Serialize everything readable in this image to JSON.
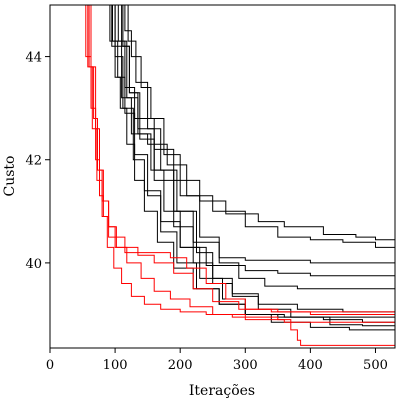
{
  "chart_data": {
    "type": "line",
    "xlabel": "Iterações",
    "ylabel": "Custo",
    "xlim": [
      0,
      530
    ],
    "ylim": [
      38.35,
      45.0
    ],
    "xticks": [
      0,
      100,
      200,
      300,
      400,
      500
    ],
    "yticks": [
      40,
      42,
      44
    ],
    "grid": false,
    "legend": "none",
    "colors": {
      "black_series": "#000000",
      "red_series": "#ff0000"
    },
    "series": [
      {
        "color": "#000000",
        "points": [
          [
            82,
            45.0
          ],
          [
            95,
            44.2
          ],
          [
            110,
            43.2
          ],
          [
            125,
            42.5
          ],
          [
            150,
            42.3
          ],
          [
            180,
            41.9
          ],
          [
            210,
            41.3
          ],
          [
            250,
            41.0
          ],
          [
            300,
            40.7
          ],
          [
            350,
            40.5
          ],
          [
            400,
            40.45
          ],
          [
            450,
            40.4
          ],
          [
            500,
            40.3
          ],
          [
            530,
            40.25
          ]
        ]
      },
      {
        "color": "#000000",
        "points": [
          [
            88,
            45.0
          ],
          [
            100,
            44.3
          ],
          [
            115,
            43.4
          ],
          [
            130,
            42.8
          ],
          [
            160,
            42.2
          ],
          [
            190,
            41.6
          ],
          [
            230,
            41.2
          ],
          [
            270,
            40.95
          ],
          [
            320,
            40.8
          ],
          [
            360,
            40.7
          ],
          [
            420,
            40.55
          ],
          [
            470,
            40.5
          ],
          [
            500,
            40.45
          ],
          [
            530,
            40.45
          ]
        ]
      },
      {
        "color": "#000000",
        "points": [
          [
            95,
            45.0
          ],
          [
            105,
            44.3
          ],
          [
            118,
            43.2
          ],
          [
            135,
            42.6
          ],
          [
            160,
            41.8
          ],
          [
            190,
            41.0
          ],
          [
            220,
            40.4
          ],
          [
            260,
            40.1
          ],
          [
            300,
            40.05
          ],
          [
            400,
            40.0
          ],
          [
            450,
            40.0
          ],
          [
            530,
            40.0
          ]
        ]
      },
      {
        "color": "#000000",
        "points": [
          [
            92,
            45.0
          ],
          [
            100,
            44.0
          ],
          [
            112,
            43.0
          ],
          [
            128,
            42.0
          ],
          [
            145,
            41.4
          ],
          [
            170,
            40.8
          ],
          [
            200,
            40.3
          ],
          [
            240,
            39.95
          ],
          [
            300,
            39.85
          ],
          [
            350,
            39.8
          ],
          [
            400,
            39.75
          ],
          [
            450,
            39.75
          ],
          [
            530,
            39.75
          ]
        ]
      },
      {
        "color": "#000000",
        "points": [
          [
            108,
            45.0
          ],
          [
            115,
            44.5
          ],
          [
            125,
            44.0
          ],
          [
            140,
            43.4
          ],
          [
            155,
            42.8
          ],
          [
            175,
            42.1
          ],
          [
            200,
            41.3
          ],
          [
            230,
            40.5
          ],
          [
            260,
            40.0
          ],
          [
            290,
            39.7
          ],
          [
            330,
            39.55
          ],
          [
            380,
            39.5
          ],
          [
            450,
            39.5
          ],
          [
            530,
            39.5
          ]
        ]
      },
      {
        "color": "#000000",
        "points": [
          [
            100,
            45.0
          ],
          [
            110,
            44.2
          ],
          [
            122,
            43.3
          ],
          [
            138,
            42.4
          ],
          [
            160,
            41.6
          ],
          [
            190,
            40.7
          ],
          [
            220,
            40.0
          ],
          [
            250,
            39.6
          ],
          [
            280,
            39.35
          ],
          [
            320,
            39.2
          ],
          [
            380,
            39.1
          ],
          [
            450,
            39.05
          ],
          [
            530,
            39.05
          ]
        ]
      },
      {
        "color": "#000000",
        "points": [
          [
            112,
            45.0
          ],
          [
            120,
            44.3
          ],
          [
            132,
            43.5
          ],
          [
            150,
            42.6
          ],
          [
            170,
            41.8
          ],
          [
            195,
            41.0
          ],
          [
            225,
            40.2
          ],
          [
            250,
            39.7
          ],
          [
            280,
            39.4
          ],
          [
            320,
            39.1
          ],
          [
            370,
            38.95
          ],
          [
            430,
            38.8
          ],
          [
            480,
            38.78
          ],
          [
            530,
            38.75
          ]
        ]
      },
      {
        "color": "#000000",
        "points": [
          [
            90,
            45.0
          ],
          [
            96,
            44.3
          ],
          [
            104,
            43.6
          ],
          [
            115,
            42.9
          ],
          [
            130,
            42.1
          ],
          [
            150,
            41.3
          ],
          [
            170,
            40.6
          ],
          [
            195,
            40.0
          ],
          [
            225,
            39.5
          ],
          [
            260,
            39.2
          ],
          [
            300,
            39.0
          ],
          [
            350,
            38.95
          ],
          [
            420,
            38.9
          ],
          [
            480,
            38.85
          ],
          [
            530,
            38.85
          ]
        ]
      },
      {
        "color": "#000000",
        "points": [
          [
            105,
            45.0
          ],
          [
            112,
            44.2
          ],
          [
            122,
            43.3
          ],
          [
            135,
            42.5
          ],
          [
            155,
            41.8
          ],
          [
            175,
            41.0
          ],
          [
            200,
            40.3
          ],
          [
            230,
            39.7
          ],
          [
            265,
            39.3
          ],
          [
            300,
            39.0
          ],
          [
            340,
            38.85
          ],
          [
            400,
            38.75
          ],
          [
            460,
            38.7
          ],
          [
            530,
            38.65
          ]
        ]
      },
      {
        "color": "#000000",
        "points": [
          [
            85,
            45.0
          ],
          [
            92,
            44.3
          ],
          [
            100,
            43.6
          ],
          [
            108,
            43.0
          ],
          [
            118,
            42.3
          ],
          [
            130,
            41.6
          ],
          [
            145,
            41.0
          ],
          [
            165,
            40.4
          ],
          [
            190,
            39.9
          ],
          [
            220,
            39.5
          ],
          [
            260,
            39.2
          ],
          [
            300,
            39.0
          ],
          [
            360,
            38.95
          ],
          [
            430,
            38.95
          ],
          [
            530,
            38.95
          ]
        ]
      },
      {
        "color": "#ff0000",
        "points": [
          [
            45,
            45.0
          ],
          [
            55,
            44.0
          ],
          [
            63,
            43.0
          ],
          [
            70,
            42.0
          ],
          [
            76,
            41.3
          ],
          [
            82,
            40.9
          ],
          [
            90,
            40.5
          ],
          [
            100,
            40.3
          ],
          [
            115,
            40.2
          ],
          [
            135,
            40.2
          ],
          [
            160,
            40.2
          ],
          [
            185,
            40.1
          ],
          [
            210,
            39.9
          ],
          [
            240,
            39.6
          ],
          [
            270,
            39.3
          ],
          [
            300,
            39.1
          ],
          [
            350,
            39.05
          ],
          [
            450,
            39.05
          ],
          [
            530,
            39.05
          ]
        ]
      },
      {
        "color": "#ff0000",
        "points": [
          [
            52,
            45.0
          ],
          [
            60,
            43.8
          ],
          [
            67,
            42.8
          ],
          [
            73,
            41.8
          ],
          [
            80,
            41.2
          ],
          [
            90,
            40.7
          ],
          [
            100,
            40.5
          ],
          [
            115,
            40.3
          ],
          [
            135,
            40.15
          ],
          [
            160,
            40.0
          ],
          [
            190,
            39.8
          ],
          [
            220,
            39.5
          ],
          [
            250,
            39.25
          ],
          [
            290,
            39.1
          ],
          [
            340,
            39.05
          ],
          [
            400,
            39.0
          ],
          [
            530,
            39.0
          ]
        ]
      },
      {
        "color": "#ff0000",
        "points": [
          [
            56,
            45.0
          ],
          [
            63,
            43.8
          ],
          [
            70,
            42.6
          ],
          [
            76,
            41.8
          ],
          [
            82,
            41.2
          ],
          [
            90,
            40.7
          ],
          [
            102,
            40.3
          ],
          [
            118,
            40.0
          ],
          [
            140,
            39.7
          ],
          [
            160,
            39.45
          ],
          [
            185,
            39.3
          ],
          [
            215,
            39.15
          ],
          [
            250,
            39.0
          ],
          [
            300,
            38.9
          ],
          [
            360,
            38.85
          ],
          [
            430,
            38.85
          ],
          [
            530,
            38.85
          ]
        ]
      },
      {
        "color": "#ff0000",
        "points": [
          [
            50,
            45.0
          ],
          [
            58,
            43.8
          ],
          [
            65,
            42.6
          ],
          [
            72,
            41.6
          ],
          [
            80,
            40.9
          ],
          [
            88,
            40.3
          ],
          [
            98,
            39.9
          ],
          [
            110,
            39.6
          ],
          [
            125,
            39.35
          ],
          [
            145,
            39.2
          ],
          [
            170,
            39.1
          ],
          [
            200,
            39.05
          ],
          [
            240,
            39.0
          ],
          [
            280,
            38.95
          ],
          [
            320,
            38.95
          ],
          [
            350,
            38.9
          ],
          [
            370,
            38.7
          ],
          [
            380,
            38.5
          ],
          [
            385,
            38.4
          ],
          [
            450,
            38.4
          ],
          [
            530,
            38.4
          ]
        ]
      }
    ]
  }
}
